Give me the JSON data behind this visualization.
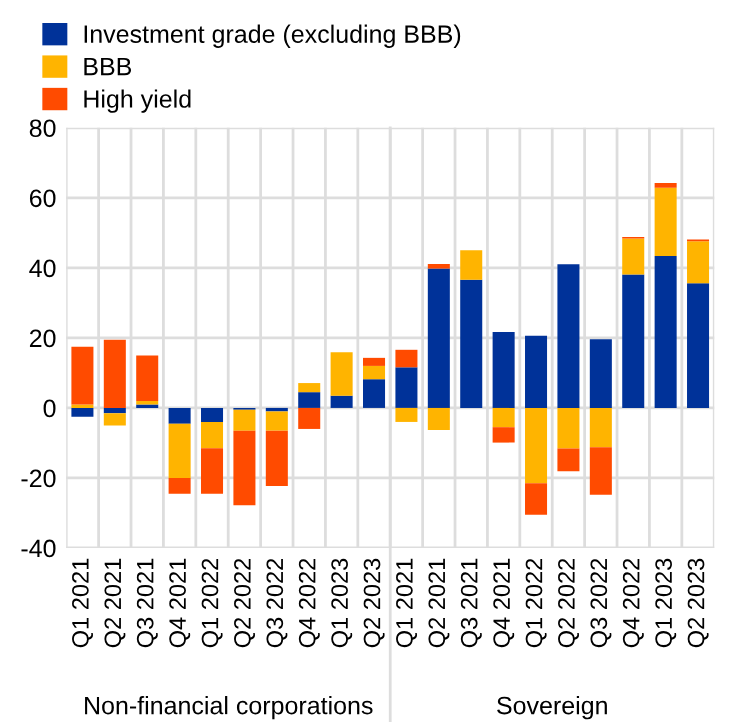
{
  "chart_data": {
    "type": "bar",
    "stacked": true,
    "categories": [
      "Q1 2021",
      "Q2 2021",
      "Q3 2021",
      "Q4 2021",
      "Q1 2022",
      "Q2 2022",
      "Q3 2022",
      "Q4 2022",
      "Q1 2023",
      "Q2 2023",
      "Q1 2021",
      "Q2 2021",
      "Q3 2021",
      "Q4 2021",
      "Q1 2022",
      "Q2 2022",
      "Q3 2022",
      "Q4 2022",
      "Q1 2023",
      "Q2 2023"
    ],
    "series": [
      {
        "name": "Investment grade (excluding BBB)",
        "color": "#003299",
        "values": [
          -2.5,
          -1.5,
          1,
          -4.5,
          -4,
          -0.5,
          -1,
          4.5,
          3.5,
          8.2,
          11.6,
          39.8,
          36.6,
          21.7,
          20.6,
          41,
          19.6,
          38.1,
          43.4,
          35.6
        ]
      },
      {
        "name": "BBB",
        "color": "#ffb400",
        "values": [
          1,
          -3.5,
          1,
          -15.5,
          -7.5,
          -6,
          -5.5,
          2.6,
          12.4,
          3.8,
          -4,
          -6.3,
          8.4,
          -5.5,
          -21.5,
          -11.6,
          -11.2,
          10.3,
          19.5,
          12
        ]
      },
      {
        "name": "High yield",
        "color": "#ff4b00",
        "values": [
          16.5,
          19.5,
          13,
          -4.5,
          -13,
          -21.3,
          -15.8,
          -6,
          0,
          2.3,
          5,
          1.3,
          0,
          -4.4,
          -9,
          -6.5,
          -13.6,
          0.4,
          1.3,
          0.5
        ]
      }
    ],
    "ylim": [
      -40,
      80
    ],
    "yticks": [
      -40,
      -20,
      0,
      20,
      40,
      60,
      80
    ],
    "grid": true,
    "legend": "top left",
    "annotations": [
      "Non-financial corporations",
      "Sovereign"
    ]
  }
}
